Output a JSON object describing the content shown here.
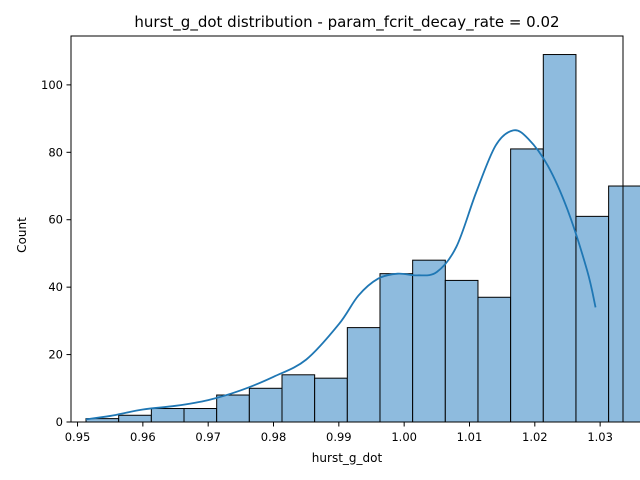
{
  "chart_data": {
    "type": "bar",
    "title": "hurst_g_dot distribution - param_fcrit_decay_rate = 0.02",
    "xlabel": "hurst_g_dot",
    "ylabel": "Count",
    "xlim": [
      0.949,
      1.0335
    ],
    "ylim": [
      0,
      114.5
    ],
    "xticks": [
      0.95,
      0.96,
      0.97,
      0.98,
      0.99,
      1.0,
      1.01,
      1.02,
      1.03
    ],
    "xtick_labels": [
      "0.95",
      "0.96",
      "0.97",
      "0.98",
      "0.99",
      "1.00",
      "1.01",
      "1.02",
      "1.03"
    ],
    "yticks": [
      0,
      20,
      40,
      60,
      80,
      100
    ],
    "ytick_labels": [
      "0",
      "20",
      "40",
      "60",
      "80",
      "100"
    ],
    "bins": {
      "start": 0.9513,
      "width": 0.005,
      "counts": [
        1,
        2,
        4,
        4,
        8,
        10,
        14,
        13,
        28,
        44,
        48,
        42,
        37,
        81,
        109,
        61,
        70
      ]
    },
    "kde": {
      "x": [
        0.9513,
        0.955,
        0.96,
        0.965,
        0.97,
        0.975,
        0.98,
        0.985,
        0.99,
        0.993,
        0.996,
        0.999,
        1.002,
        1.005,
        1.008,
        1.011,
        1.014,
        1.0167,
        1.019,
        1.022,
        1.025,
        1.028,
        1.0293
      ],
      "y": [
        0.8,
        1.8,
        3.7,
        4.8,
        6.5,
        9.4,
        13.4,
        18.5,
        29.0,
        37.5,
        42.5,
        44.0,
        43.5,
        44.5,
        52.0,
        68.0,
        82.0,
        86.5,
        84.0,
        76.0,
        63.0,
        45.0,
        34.0
      ]
    },
    "colors": {
      "bar_fill": "#8ebbde",
      "bar_edge": "#000000",
      "kde_line": "#1f77b4"
    },
    "grid": false,
    "legend": "none"
  }
}
